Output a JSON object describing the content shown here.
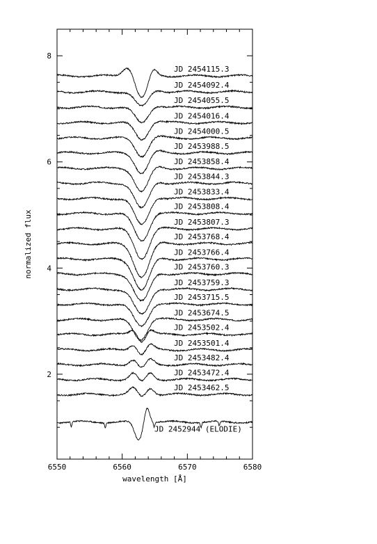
{
  "chart_data": {
    "type": "line",
    "title": "",
    "xlabel": "wavelength [Å]",
    "ylabel": "normalized flux",
    "xlim": [
      6550,
      6580
    ],
    "ylim": [
      0.4,
      8.5
    ],
    "xticks": [
      "6550",
      "6560",
      "6570",
      "6580"
    ],
    "yticks": [
      "2",
      "4",
      "6",
      "8"
    ],
    "grid": false,
    "legend": "none",
    "line_color": "#000000",
    "series": [
      {
        "label": "JD 2454115.3",
        "baseline": 7.62,
        "profile": "emission-absorption",
        "depth": 0.42,
        "center": 6563.0,
        "width": 0.9,
        "em_height": 0.18,
        "em_offset": 1.7
      },
      {
        "label": "JD 2454092.4",
        "baseline": 7.32,
        "profile": "absorption",
        "depth": 0.28,
        "center": 6563.0,
        "width": 1.0
      },
      {
        "label": "JD 2454055.5",
        "baseline": 7.03,
        "profile": "absorption",
        "depth": 0.3,
        "center": 6563.0,
        "width": 1.0
      },
      {
        "label": "JD 2454016.4",
        "baseline": 6.74,
        "profile": "absorption",
        "depth": 0.32,
        "center": 6563.0,
        "width": 1.0
      },
      {
        "label": "JD 2454000.5",
        "baseline": 6.45,
        "profile": "absorption",
        "depth": 0.34,
        "center": 6563.0,
        "width": 1.0
      },
      {
        "label": "JD 2453988.5",
        "baseline": 6.17,
        "profile": "absorption",
        "depth": 0.38,
        "center": 6563.0,
        "width": 1.0
      },
      {
        "label": "JD 2453858.4",
        "baseline": 5.88,
        "profile": "absorption",
        "depth": 0.44,
        "center": 6563.0,
        "width": 1.05
      },
      {
        "label": "JD 2453844.3",
        "baseline": 5.6,
        "profile": "absorption",
        "depth": 0.48,
        "center": 6563.0,
        "width": 1.1
      },
      {
        "label": "JD 2453833.4",
        "baseline": 5.31,
        "profile": "absorption",
        "depth": 0.5,
        "center": 6563.0,
        "width": 1.1
      },
      {
        "label": "JD 2453808.4",
        "baseline": 5.03,
        "profile": "absorption",
        "depth": 0.52,
        "center": 6563.0,
        "width": 1.15
      },
      {
        "label": "JD 2453807.3",
        "baseline": 4.74,
        "profile": "absorption",
        "depth": 0.56,
        "center": 6563.0,
        "width": 1.15
      },
      {
        "label": "JD 2453768.4",
        "baseline": 4.46,
        "profile": "absorption",
        "depth": 0.62,
        "center": 6563.0,
        "width": 1.2
      },
      {
        "label": "JD 2453766.4",
        "baseline": 4.17,
        "profile": "absorption",
        "depth": 0.58,
        "center": 6563.0,
        "width": 1.2
      },
      {
        "label": "JD 2453760.3",
        "baseline": 3.89,
        "profile": "absorption",
        "depth": 0.52,
        "center": 6563.0,
        "width": 1.2
      },
      {
        "label": "JD 2453759.3",
        "baseline": 3.6,
        "profile": "absorption",
        "depth": 0.48,
        "center": 6563.0,
        "width": 1.2
      },
      {
        "label": "JD 2453715.5",
        "baseline": 3.32,
        "profile": "absorption",
        "depth": 0.42,
        "center": 6562.9,
        "width": 1.15
      },
      {
        "label": "JD 2453674.5",
        "baseline": 3.03,
        "profile": "absorption",
        "depth": 0.38,
        "center": 6562.8,
        "width": 1.05
      },
      {
        "label": "JD 2453502.4",
        "baseline": 2.75,
        "profile": "double",
        "depth": 0.14,
        "center": 6563.0,
        "width": 0.6,
        "em_height": 0.09,
        "em_offset": 1.3
      },
      {
        "label": "JD 2453501.4",
        "baseline": 2.46,
        "profile": "double",
        "depth": 0.1,
        "center": 6563.0,
        "width": 0.6,
        "em_height": 0.1,
        "em_offset": 1.3
      },
      {
        "label": "JD 2453482.4",
        "baseline": 2.18,
        "profile": "double",
        "depth": 0.08,
        "center": 6563.0,
        "width": 0.6,
        "em_height": 0.1,
        "em_offset": 1.3
      },
      {
        "label": "JD 2453472.4",
        "baseline": 1.9,
        "profile": "double",
        "depth": 0.06,
        "center": 6563.0,
        "width": 0.6,
        "em_height": 0.12,
        "em_offset": 1.3
      },
      {
        "label": "JD 2453462.5",
        "baseline": 1.62,
        "profile": "double",
        "depth": 0.06,
        "center": 6563.0,
        "width": 0.6,
        "em_height": 0.12,
        "em_offset": 1.3
      },
      {
        "label": "JD 2452944 (ELODIE)",
        "baseline": 1.1,
        "profile": "elodie",
        "depth": 0.34,
        "center": 6562.5,
        "width": 0.6,
        "em_height": 0.3,
        "em_offset": 1.3
      }
    ]
  }
}
